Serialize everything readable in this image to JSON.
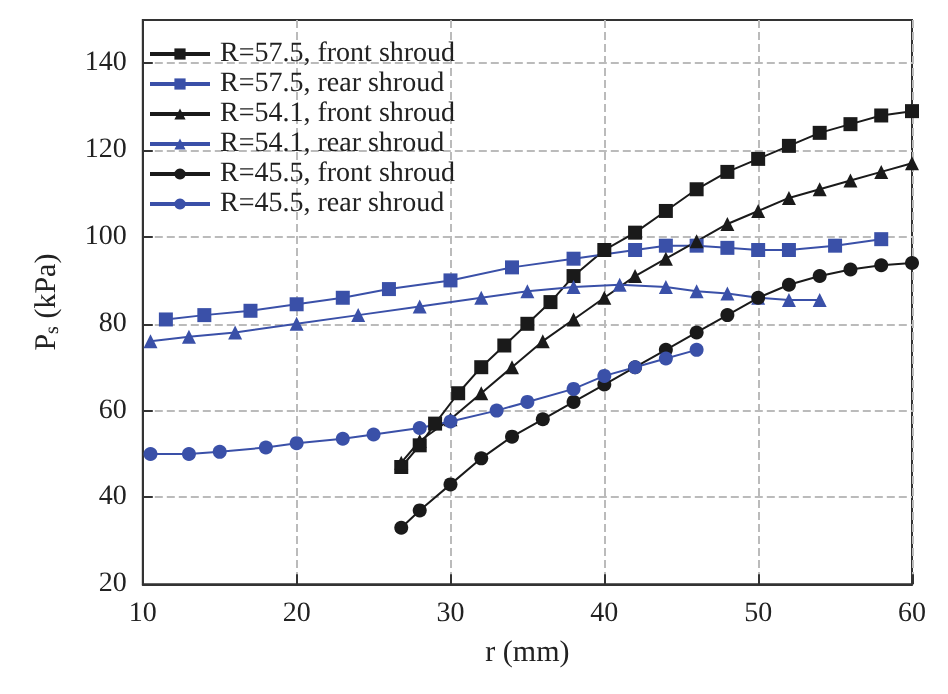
{
  "chart_data": {
    "type": "line",
    "xlabel": "r (mm)",
    "ylabel": "P$_{s}$ (kPa)",
    "xlim": [
      10,
      60
    ],
    "xticks": [
      10,
      20,
      30,
      40,
      50,
      60
    ],
    "ylim": [
      20,
      150
    ],
    "yticks": [
      20,
      40,
      60,
      80,
      100,
      120,
      140
    ],
    "grid": true,
    "legend": "top left",
    "line_style": "solid",
    "series": [
      {
        "name": "R=57.5, front shroud",
        "color": "#1a1a1a",
        "marker": "square",
        "x": [
          26.8,
          28,
          29,
          30.5,
          32,
          33.5,
          35,
          36.5,
          38,
          40,
          42,
          44,
          46,
          48,
          50,
          52,
          54,
          56,
          58,
          60
        ],
        "values": [
          47,
          52,
          57,
          64,
          70,
          75,
          80,
          85,
          91,
          97,
          101,
          106,
          111,
          115,
          118,
          121,
          124,
          126,
          128,
          129
        ]
      },
      {
        "name": "R=57.5, rear shroud",
        "color": "#3a50a8",
        "marker": "square",
        "x": [
          11.5,
          14,
          17,
          20,
          23,
          26,
          30,
          34,
          38,
          42,
          44,
          46,
          48,
          50,
          52,
          55,
          58
        ],
        "values": [
          81,
          82,
          83,
          84.5,
          86,
          88,
          90,
          93,
          95,
          97,
          98,
          98,
          97.5,
          97,
          97,
          98,
          99.5
        ]
      },
      {
        "name": "R=54.1, front shroud",
        "color": "#1a1a1a",
        "marker": "triangle",
        "x": [
          26.8,
          28,
          30,
          32,
          34,
          36,
          38,
          40,
          42,
          44,
          46,
          48,
          50,
          52,
          54,
          56,
          58,
          60
        ],
        "values": [
          48,
          53,
          58,
          64,
          70,
          76,
          81,
          86,
          91,
          95,
          99,
          103,
          106,
          109,
          111,
          113,
          115,
          117
        ]
      },
      {
        "name": "R=54.1, rear shroud",
        "color": "#3a50a8",
        "marker": "triangle",
        "x": [
          10.5,
          13,
          16,
          20,
          24,
          28,
          32,
          35,
          38,
          41,
          44,
          46,
          48,
          50,
          52,
          54
        ],
        "values": [
          76,
          77,
          78,
          80,
          82,
          84,
          86,
          87.5,
          88.5,
          89,
          88.5,
          87.5,
          87,
          86,
          85.5,
          85.5
        ]
      },
      {
        "name": "R=45.5, front shroud",
        "color": "#1a1a1a",
        "marker": "circle",
        "x": [
          26.8,
          28,
          30,
          32,
          34,
          36,
          38,
          40,
          42,
          44,
          46,
          48,
          50,
          52,
          54,
          56,
          58,
          60
        ],
        "values": [
          33,
          37,
          43,
          49,
          54,
          58,
          62,
          66,
          70,
          74,
          78,
          82,
          86,
          89,
          91,
          92.5,
          93.5,
          94
        ]
      },
      {
        "name": "R=45.5, rear shroud",
        "color": "#3a50a8",
        "marker": "circle",
        "x": [
          10.5,
          13,
          15,
          18,
          20,
          23,
          25,
          28,
          30,
          33,
          35,
          38,
          40,
          42,
          44,
          46
        ],
        "values": [
          50,
          50,
          50.5,
          51.5,
          52.5,
          53.5,
          54.5,
          56,
          57.5,
          60,
          62,
          65,
          68,
          70,
          72,
          74
        ]
      }
    ]
  }
}
